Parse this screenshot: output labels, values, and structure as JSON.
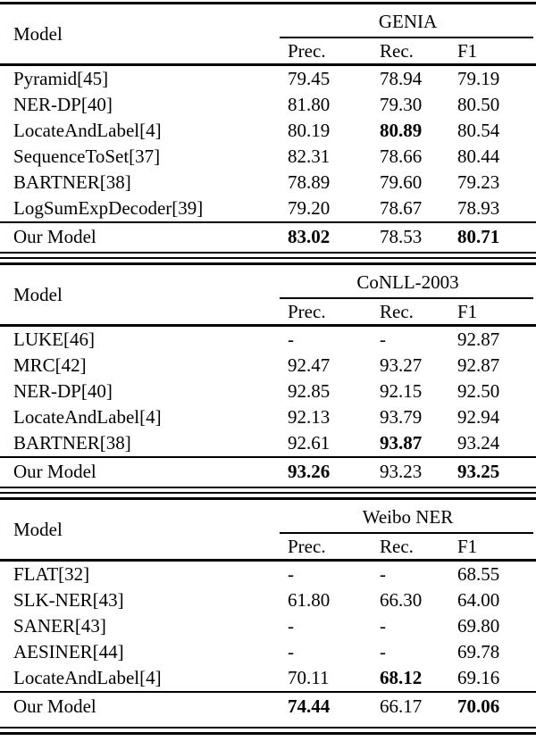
{
  "page": {
    "background_color": "#ffffff",
    "text_color": "#000000",
    "rule_color": "#000000"
  },
  "tables": [
    {
      "dataset": "GENIA",
      "model_header": "Model",
      "columns": [
        "Prec.",
        "Rec.",
        "F1"
      ],
      "rows": [
        {
          "model": "Pyramid[45]",
          "prec": "79.45",
          "rec": "78.94",
          "f1": "79.19"
        },
        {
          "model": "NER-DP[40]",
          "prec": "81.80",
          "rec": "79.30",
          "f1": "80.50"
        },
        {
          "model": "LocateAndLabel[4]",
          "prec": "80.19",
          "rec": "80.89",
          "f1": "80.54",
          "rec_bold": true
        },
        {
          "model": "SequenceToSet[37]",
          "prec": "82.31",
          "rec": "78.66",
          "f1": "80.44"
        },
        {
          "model": "BARTNER[38]",
          "prec": "78.89",
          "rec": "79.60",
          "f1": "79.23"
        },
        {
          "model": "LogSumExpDecoder[39]",
          "prec": "79.20",
          "rec": "78.67",
          "f1": "78.93"
        }
      ],
      "final": {
        "model": "Our Model",
        "prec": "83.02",
        "rec": "78.53",
        "f1": "80.71",
        "prec_bold": true,
        "f1_bold": true
      }
    },
    {
      "dataset": "CoNLL-2003",
      "model_header": "Model",
      "columns": [
        "Prec.",
        "Rec.",
        "F1"
      ],
      "rows": [
        {
          "model": "LUKE[46]",
          "prec": "-",
          "rec": "-",
          "f1": "92.87"
        },
        {
          "model": "MRC[42]",
          "prec": "92.47",
          "rec": "93.27",
          "f1": "92.87"
        },
        {
          "model": "NER-DP[40]",
          "prec": "92.85",
          "rec": "92.15",
          "f1": "92.50"
        },
        {
          "model": "LocateAndLabel[4]",
          "prec": "92.13",
          "rec": "93.79",
          "f1": "92.94"
        },
        {
          "model": "BARTNER[38]",
          "prec": "92.61",
          "rec": "93.87",
          "f1": "93.24",
          "rec_bold": true
        }
      ],
      "final": {
        "model": "Our Model",
        "prec": "93.26",
        "rec": "93.23",
        "f1": "93.25",
        "prec_bold": true,
        "f1_bold": true
      }
    },
    {
      "dataset": "Weibo NER",
      "model_header": "Model",
      "columns": [
        "Prec.",
        "Rec.",
        "F1"
      ],
      "rows": [
        {
          "model": "FLAT[32]",
          "prec": "-",
          "rec": "-",
          "f1": "68.55"
        },
        {
          "model": "SLK-NER[43]",
          "prec": "61.80",
          "rec": "66.30",
          "f1": "64.00"
        },
        {
          "model": "SANER[43]",
          "prec": "-",
          "rec": "-",
          "f1": "69.80"
        },
        {
          "model": "AESINER[44]",
          "prec": "-",
          "rec": "-",
          "f1": "69.78"
        },
        {
          "model": "LocateAndLabel[4]",
          "prec": "70.11",
          "rec": "68.12",
          "f1": "69.16",
          "rec_bold": true
        }
      ],
      "final": {
        "model": "Our Model",
        "prec": "74.44",
        "rec": "66.17",
        "f1": "70.06",
        "prec_bold": true,
        "f1_bold": true
      }
    }
  ]
}
